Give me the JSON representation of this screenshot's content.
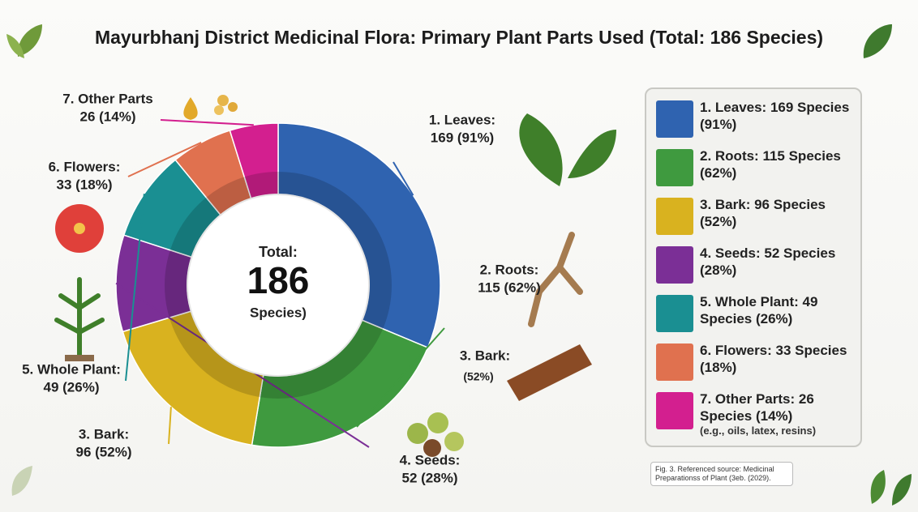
{
  "chart_data": {
    "type": "donut",
    "title": "Mayurbhanj District Medicinal Flora: Primary Plant Parts Used (Total: 186 Species)",
    "categories": [
      "1. Leaves:",
      "2. Roots:",
      "3. Bark:",
      "4. Seeds:",
      "5. Whole Plant:",
      "6. Flowers:",
      "7. Other Parts"
    ],
    "values": [
      169,
      115,
      96,
      52,
      49,
      33,
      26
    ],
    "value_labels": [
      "169 (91%)",
      "115 (62%)",
      "96 (52%)",
      "52 (28%)",
      "49 (26%)",
      "33 (18%)",
      "26 (14%)"
    ],
    "colors": [
      "#2f63b0",
      "#3f9a3f",
      "#d9b21f",
      "#7b2f96",
      "#1a8f92",
      "#e0714f",
      "#d31f8f"
    ],
    "center": {
      "label": "Total:",
      "total": 186,
      "unit": "Species)"
    },
    "annotations": [
      {
        "label": "3. Bark:",
        "value_label": "(52%)"
      }
    ],
    "legend": [
      "1. Leaves: 169 Species (91%)",
      "2. Roots: 115 Species (62%)",
      "3. Bark: 96 Species (52%)",
      "4. Seeds: 52 Species (28%)",
      "5. Whole Plant: 49 Species (26%)",
      "6. Flowers: 33 Species (18%)",
      "7. Other Parts: 26 Species (14%)"
    ],
    "legend_note": "(e.g., oils, latex, resins)",
    "legend_position": "right",
    "note": "Fig. 3. Referenced source: Medicinal Preparationss of Plant (3eb. (2029)."
  }
}
